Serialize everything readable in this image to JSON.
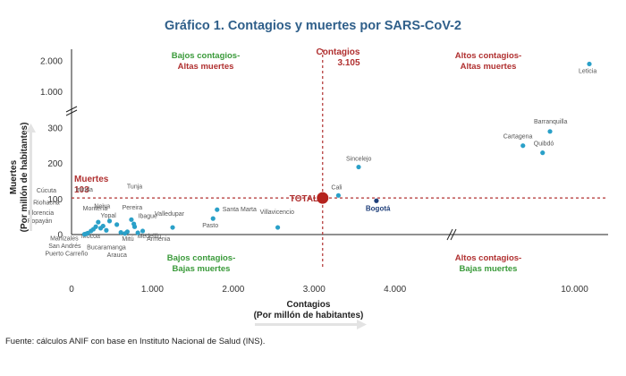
{
  "chart_data": {
    "type": "scatter",
    "title": "Gráfico 1. Contagios y muertes por SARS-CoV-2",
    "xlabel_line1": "Contagios",
    "xlabel_line2": "(Por millón de habitantes)",
    "ylabel_line1": "Muertes",
    "ylabel_line2": "(Por millón de habitantes)",
    "x_axis": {
      "breakpoint": 4700,
      "tick_labels": [
        {
          "value": 0,
          "label": "0"
        },
        {
          "value": 1000,
          "label": "1.000"
        },
        {
          "value": 2000,
          "label": "2.000"
        },
        {
          "value": 3000,
          "label": "3.000"
        },
        {
          "value": 4000,
          "label": "4.000"
        },
        {
          "value": 10000,
          "label": "10.000"
        }
      ]
    },
    "y_axis": {
      "breakpoint": 350,
      "tick_labels": [
        {
          "value": 0,
          "label": "0"
        },
        {
          "value": 100,
          "label": "100"
        },
        {
          "value": 200,
          "label": "200"
        },
        {
          "value": 300,
          "label": "300"
        },
        {
          "value": 1000,
          "label": "1.000"
        },
        {
          "value": 2000,
          "label": "2.000"
        }
      ]
    },
    "reference_lines": {
      "contagios": {
        "value": 3105,
        "label_line1": "Contagios",
        "label_line2": "3.105"
      },
      "muertes": {
        "value": 103,
        "label_line1": "Muertes",
        "label_line2": "103"
      }
    },
    "quadrants": {
      "top_left": {
        "line1": "Bajos contagios-",
        "line2": "Altas muertes"
      },
      "top_right": {
        "line1": "Altos contagios-",
        "line2": "Altas muertes"
      },
      "bottom_left": {
        "line1": "Bajos contagios-",
        "line2": "Bajas muertes"
      },
      "bottom_right": {
        "line1": "Altos contagios-",
        "line2": "Bajas muertes"
      }
    },
    "points": [
      {
        "name": "Leticia",
        "x": 10600,
        "y": 1900
      },
      {
        "name": "Barranquilla",
        "x": 9000,
        "y": 290
      },
      {
        "name": "Cartagena",
        "x": 7900,
        "y": 250
      },
      {
        "name": "Quibdó",
        "x": 8700,
        "y": 230
      },
      {
        "name": "Sincelejo",
        "x": 3550,
        "y": 190
      },
      {
        "name": "Cali",
        "x": 3300,
        "y": 110
      },
      {
        "name": "Bogotá",
        "x": 3770,
        "y": 95
      },
      {
        "name": "TOTAL",
        "x": 3105,
        "y": 103
      },
      {
        "name": "Villavicencio",
        "x": 2550,
        "y": 20
      },
      {
        "name": "Santa Marta",
        "x": 1800,
        "y": 70
      },
      {
        "name": "Pasto",
        "x": 1750,
        "y": 45
      },
      {
        "name": "Valledupar",
        "x": 1250,
        "y": 20
      },
      {
        "name": "Medellín",
        "x": 880,
        "y": 10
      },
      {
        "name": "Ibagué",
        "x": 780,
        "y": 22
      },
      {
        "name": "Armenia",
        "x": 820,
        "y": 5
      },
      {
        "name": "Pereira",
        "x": 770,
        "y": 30
      },
      {
        "name": "Tunja",
        "x": 740,
        "y": 42
      },
      {
        "name": "Mitú",
        "x": 690,
        "y": 8
      },
      {
        "name": "Bucaramanga",
        "x": 610,
        "y": 6
      },
      {
        "name": "Arauca",
        "x": 660,
        "y": 3
      },
      {
        "name": "Montería",
        "x": 560,
        "y": 28
      },
      {
        "name": "Inírida",
        "x": 470,
        "y": 38
      },
      {
        "name": "Mocoa",
        "x": 430,
        "y": 12
      },
      {
        "name": "Neiva",
        "x": 390,
        "y": 24
      },
      {
        "name": "Yopal",
        "x": 360,
        "y": 18
      },
      {
        "name": "Cúcuta",
        "x": 330,
        "y": 35
      },
      {
        "name": "Riohacha",
        "x": 300,
        "y": 22
      },
      {
        "name": "Florencia",
        "x": 270,
        "y": 15
      },
      {
        "name": "Popayán",
        "x": 240,
        "y": 10
      },
      {
        "name": "Manizales",
        "x": 200,
        "y": 4
      },
      {
        "name": "San Andrés",
        "x": 180,
        "y": 2
      },
      {
        "name": "Puerto Carreño",
        "x": 160,
        "y": 1
      }
    ]
  },
  "source": "Fuente: cálculos ANIF con base en Instituto Nacional de Salud (INS)."
}
